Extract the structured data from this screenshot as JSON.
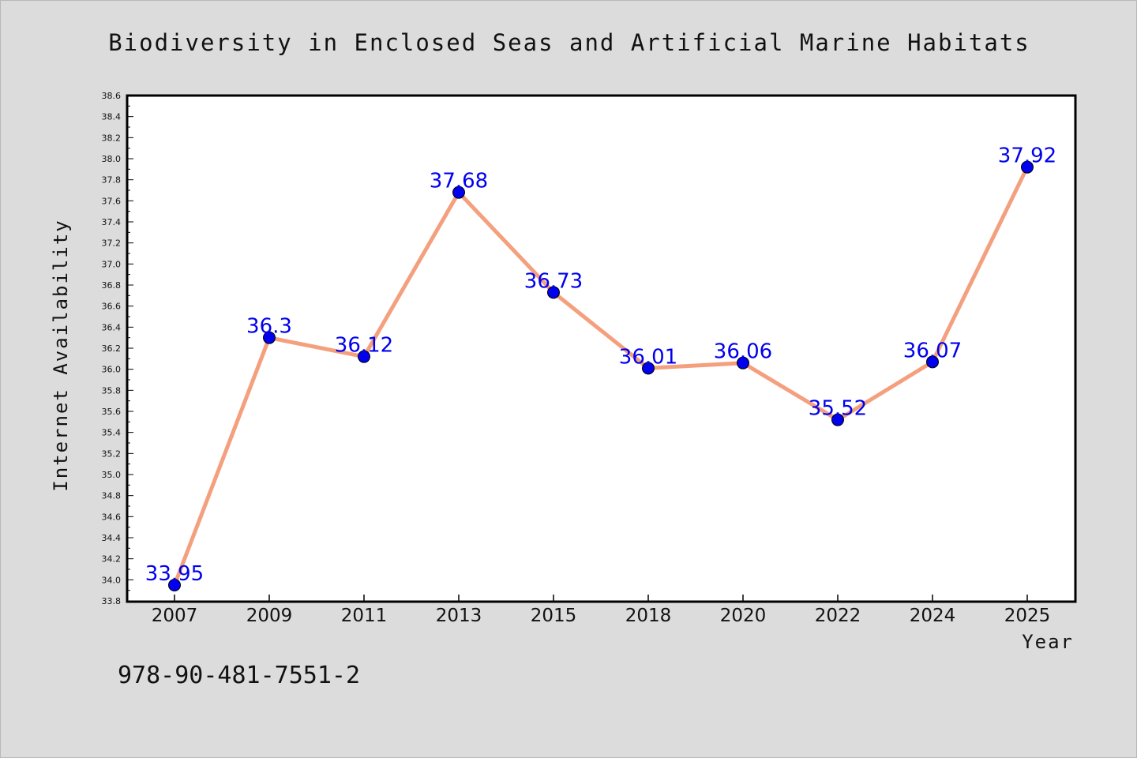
{
  "chart_data": {
    "type": "line",
    "title": "Biodiversity in Enclosed Seas and Artificial Marine Habitats",
    "xlabel": "Year",
    "ylabel": "Internet Availability",
    "categories": [
      "2007",
      "2009",
      "2011",
      "2013",
      "2015",
      "2018",
      "2020",
      "2022",
      "2024",
      "2025"
    ],
    "series": [
      {
        "values": [
          33.95,
          36.3,
          36.12,
          37.68,
          36.73,
          36.01,
          36.06,
          35.52,
          36.07,
          37.92
        ],
        "labels": [
          "33.95",
          "36.3",
          "36.12",
          "37.68",
          "36.73",
          "36.01",
          "36.06",
          "35.52",
          "36.07",
          "37.92"
        ]
      }
    ],
    "ylim": [
      33.8,
      38.6
    ],
    "ytick_step": 0.2,
    "grid": false,
    "legend": "none",
    "colors": {
      "line": "#f4a07e",
      "marker": "#0000ee",
      "label": "#0000ee",
      "background": "#dcdcdc",
      "plot_background": "#ffffff"
    }
  },
  "footnote": "978-90-481-7551-2"
}
